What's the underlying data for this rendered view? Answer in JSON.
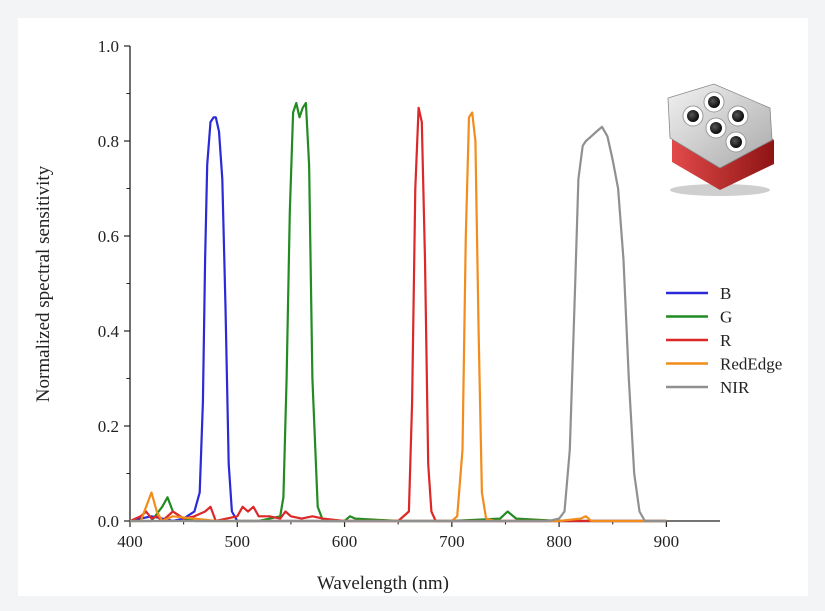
{
  "chart_data": {
    "type": "line",
    "title": "",
    "xlabel": "Wavelength (nm)",
    "ylabel": "Normalized spectral sensitivity",
    "xlim": [
      400,
      950
    ],
    "ylim": [
      0,
      1.0
    ],
    "x_ticks": [
      400,
      500,
      600,
      700,
      800,
      900
    ],
    "y_ticks": [
      0.0,
      0.2,
      0.4,
      0.6,
      0.8,
      1.0
    ],
    "x_tick_labels": [
      "400",
      "500",
      "600",
      "700",
      "800",
      "900"
    ],
    "y_tick_labels": [
      "0.0",
      "0.2",
      "0.4",
      "0.6",
      "0.8",
      "1.0"
    ],
    "grid": false,
    "legend_position": "right",
    "series": [
      {
        "name": "B",
        "color": "#2a2ad8",
        "x": [
          400,
          410,
          420,
          430,
          440,
          450,
          460,
          465,
          468,
          470,
          472,
          475,
          478,
          480,
          483,
          486,
          489,
          492,
          495,
          500,
          520,
          540,
          560,
          600,
          700,
          800,
          900
        ],
        "y": [
          0.0,
          0.005,
          0.01,
          0.005,
          0.0,
          0.005,
          0.02,
          0.06,
          0.25,
          0.55,
          0.75,
          0.84,
          0.85,
          0.85,
          0.82,
          0.72,
          0.45,
          0.12,
          0.02,
          0.0,
          0.0,
          0.0,
          0.0,
          0.0,
          0.0,
          0.0,
          0.0
        ]
      },
      {
        "name": "G",
        "color": "#228b22",
        "x": [
          400,
          420,
          430,
          435,
          440,
          450,
          460,
          480,
          500,
          520,
          540,
          543,
          546,
          549,
          552,
          555,
          558,
          561,
          564,
          567,
          570,
          575,
          580,
          600,
          605,
          610,
          650,
          700,
          745,
          752,
          760,
          800,
          900
        ],
        "y": [
          0.0,
          0.0,
          0.03,
          0.05,
          0.02,
          0.005,
          0.0,
          0.0,
          0.0,
          0.0,
          0.01,
          0.05,
          0.3,
          0.65,
          0.86,
          0.88,
          0.85,
          0.87,
          0.88,
          0.75,
          0.3,
          0.03,
          0.0,
          0.0,
          0.01,
          0.005,
          0.0,
          0.0,
          0.005,
          0.02,
          0.005,
          0.0,
          0.0
        ]
      },
      {
        "name": "R",
        "color": "#dc2828",
        "x": [
          400,
          410,
          415,
          420,
          425,
          430,
          440,
          450,
          460,
          470,
          475,
          480,
          490,
          500,
          505,
          510,
          515,
          520,
          530,
          540,
          545,
          550,
          560,
          570,
          580,
          600,
          650,
          660,
          663,
          666,
          669,
          672,
          675,
          678,
          681,
          685,
          700,
          800,
          900
        ],
        "y": [
          0.0,
          0.01,
          0.02,
          0.005,
          0.01,
          0.0,
          0.02,
          0.005,
          0.01,
          0.02,
          0.03,
          0.0,
          0.005,
          0.01,
          0.03,
          0.02,
          0.03,
          0.01,
          0.01,
          0.005,
          0.02,
          0.01,
          0.005,
          0.01,
          0.005,
          0.0,
          0.0,
          0.02,
          0.25,
          0.7,
          0.87,
          0.84,
          0.55,
          0.12,
          0.02,
          0.0,
          0.0,
          0.0,
          0.0
        ]
      },
      {
        "name": "RedEdge",
        "color": "#f28c1c",
        "x": [
          400,
          410,
          415,
          420,
          425,
          430,
          440,
          460,
          480,
          500,
          600,
          700,
          705,
          710,
          713,
          716,
          719,
          722,
          725,
          728,
          732,
          740,
          800,
          820,
          825,
          830,
          900
        ],
        "y": [
          0.0,
          0.0,
          0.03,
          0.06,
          0.02,
          0.0,
          0.01,
          0.005,
          0.0,
          0.0,
          0.0,
          0.0,
          0.01,
          0.15,
          0.6,
          0.85,
          0.86,
          0.8,
          0.4,
          0.06,
          0.005,
          0.0,
          0.0,
          0.005,
          0.01,
          0.0,
          0.0
        ]
      },
      {
        "name": "NIR",
        "color": "#909090",
        "x": [
          400,
          500,
          600,
          700,
          790,
          800,
          805,
          810,
          815,
          818,
          822,
          825,
          830,
          835,
          840,
          845,
          850,
          855,
          860,
          865,
          870,
          875,
          880,
          900
        ],
        "y": [
          0.0,
          0.0,
          0.0,
          0.0,
          0.0,
          0.005,
          0.02,
          0.15,
          0.5,
          0.72,
          0.79,
          0.8,
          0.81,
          0.82,
          0.83,
          0.81,
          0.76,
          0.7,
          0.55,
          0.3,
          0.1,
          0.02,
          0.0,
          0.0
        ]
      }
    ]
  },
  "inset": {
    "name": "multispectral-camera-photo",
    "body_color": "#c0262a",
    "housing_color": "#d9d9d9"
  }
}
